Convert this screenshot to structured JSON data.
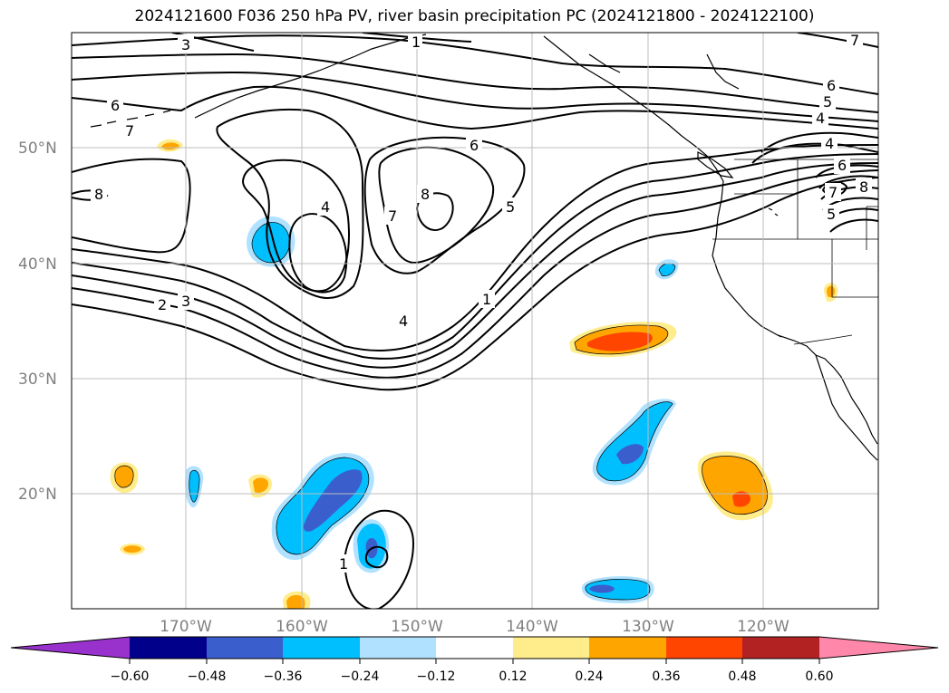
{
  "title": "2024121600 F036 250 hPa PV, river basin precipitation PC (2024121800 - 2024122100)",
  "map": {
    "lat_labels": [
      "50°N",
      "40°N",
      "30°N",
      "20°N"
    ],
    "lon_labels": [
      "170°W",
      "160°W",
      "150°W",
      "140°W",
      "130°W",
      "120°W"
    ],
    "contour_labels": [
      "3",
      "1",
      "6",
      "7",
      "2",
      "3",
      "7",
      "6",
      "4",
      "8",
      "7",
      "5",
      "1",
      "4",
      "6",
      "5",
      "4",
      "4",
      "6",
      "8",
      "7",
      "5",
      "8",
      "1",
      "7"
    ]
  },
  "colorbar": {
    "ticks": [
      "−0.60",
      "−0.48",
      "−0.36",
      "−0.24",
      "−0.12",
      "0.12",
      "0.24",
      "0.36",
      "0.48",
      "0.60"
    ],
    "colors": [
      "#9932cc",
      "#00008b",
      "#3a5fcd",
      "#00bfff",
      "#b0e2ff",
      "#ffffff",
      "#ffec8b",
      "#ffa500",
      "#ff4500",
      "#b22222",
      "#ff88aa"
    ]
  }
}
